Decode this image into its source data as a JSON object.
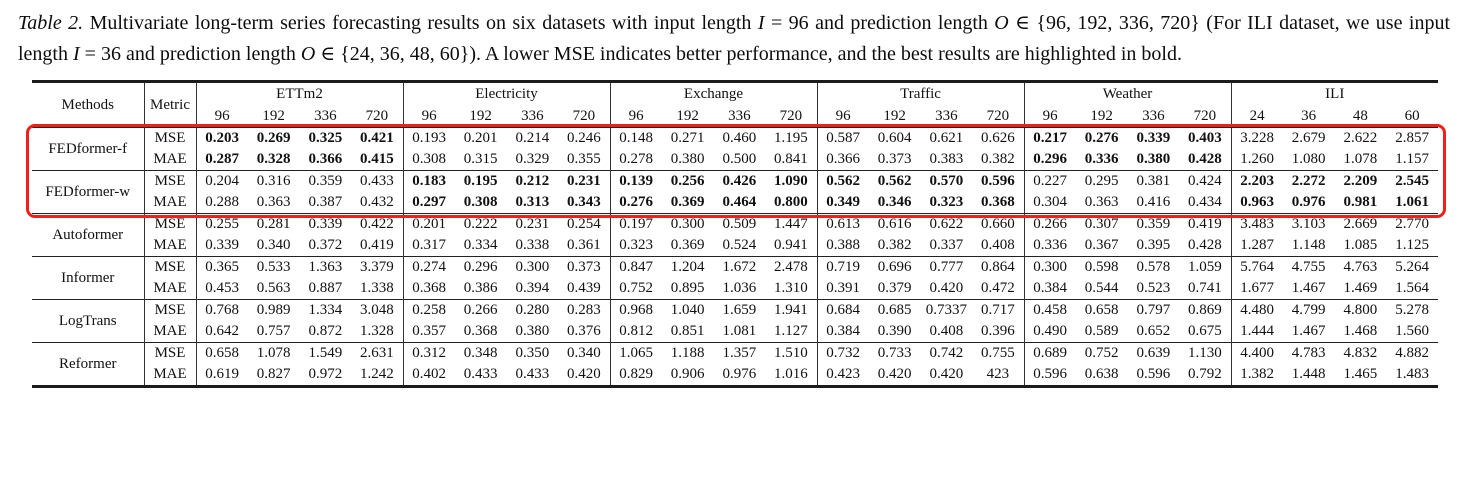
{
  "caption": {
    "segments": [
      {
        "name": "caption-label",
        "text": "Table 2. ",
        "italic": true
      },
      {
        "name": "caption-text",
        "text": "Multivariate long-term series forecasting results on six datasets with input length ",
        "italic": false
      },
      {
        "name": "caption-math",
        "text": "I",
        "italic": true
      },
      {
        "name": "caption-text",
        "text": " = 96 and prediction length ",
        "italic": false
      },
      {
        "name": "caption-math",
        "text": "O",
        "italic": true
      },
      {
        "name": "caption-text",
        "text": " ∈ {96, 192, 336, 720} (For ILI dataset, we use input length ",
        "italic": false
      },
      {
        "name": "caption-math",
        "text": "I",
        "italic": true
      },
      {
        "name": "caption-text",
        "text": " = 36 and prediction length ",
        "italic": false
      },
      {
        "name": "caption-math",
        "text": "O",
        "italic": true
      },
      {
        "name": "caption-text",
        "text": " ∈ {24, 36, 48, 60}).  A lower MSE indicates better performance, and the best results are highlighted in bold.",
        "italic": false
      }
    ]
  },
  "colors": {
    "highlight_box": "#ee2019",
    "rule": "#1c1c1c",
    "text": "#111111"
  },
  "table": {
    "methods_header": "Methods",
    "metric_header": "Metric",
    "datasets": [
      {
        "name": "ETTm2",
        "horizons": [
          "96",
          "192",
          "336",
          "720"
        ]
      },
      {
        "name": "Electricity",
        "horizons": [
          "96",
          "192",
          "336",
          "720"
        ]
      },
      {
        "name": "Exchange",
        "horizons": [
          "96",
          "192",
          "336",
          "720"
        ]
      },
      {
        "name": "Traffic",
        "horizons": [
          "96",
          "192",
          "336",
          "720"
        ]
      },
      {
        "name": "Weather",
        "horizons": [
          "96",
          "192",
          "336",
          "720"
        ]
      },
      {
        "name": "ILI",
        "horizons": [
          "24",
          "36",
          "48",
          "60"
        ]
      }
    ],
    "methods": [
      {
        "name": "FEDformer-f",
        "highlighted": true,
        "rows": [
          {
            "metric": "MSE",
            "values": [
              "0.203",
              "0.269",
              "0.325",
              "0.421",
              "0.193",
              "0.201",
              "0.214",
              "0.246",
              "0.148",
              "0.271",
              "0.460",
              "1.195",
              "0.587",
              "0.604",
              "0.621",
              "0.626",
              "0.217",
              "0.276",
              "0.339",
              "0.403",
              "3.228",
              "2.679",
              "2.622",
              "2.857"
            ],
            "bold": [
              0,
              1,
              2,
              3,
              16,
              17,
              18,
              19
            ]
          },
          {
            "metric": "MAE",
            "values": [
              "0.287",
              "0.328",
              "0.366",
              "0.415",
              "0.308",
              "0.315",
              "0.329",
              "0.355",
              "0.278",
              "0.380",
              "0.500",
              "0.841",
              "0.366",
              "0.373",
              "0.383",
              "0.382",
              "0.296",
              "0.336",
              "0.380",
              "0.428",
              "1.260",
              "1.080",
              "1.078",
              "1.157"
            ],
            "bold": [
              0,
              1,
              2,
              3,
              16,
              17,
              18,
              19
            ]
          }
        ]
      },
      {
        "name": "FEDformer-w",
        "highlighted": true,
        "rows": [
          {
            "metric": "MSE",
            "values": [
              "0.204",
              "0.316",
              "0.359",
              "0.433",
              "0.183",
              "0.195",
              "0.212",
              "0.231",
              "0.139",
              "0.256",
              "0.426",
              "1.090",
              "0.562",
              "0.562",
              "0.570",
              "0.596",
              "0.227",
              "0.295",
              "0.381",
              "0.424",
              "2.203",
              "2.272",
              "2.209",
              "2.545"
            ],
            "bold": [
              4,
              5,
              6,
              7,
              8,
              9,
              10,
              11,
              12,
              13,
              14,
              15,
              20,
              21,
              22,
              23
            ]
          },
          {
            "metric": "MAE",
            "values": [
              "0.288",
              "0.363",
              "0.387",
              "0.432",
              "0.297",
              "0.308",
              "0.313",
              "0.343",
              "0.276",
              "0.369",
              "0.464",
              "0.800",
              "0.349",
              "0.346",
              "0.323",
              "0.368",
              "0.304",
              "0.363",
              "0.416",
              "0.434",
              "0.963",
              "0.976",
              "0.981",
              "1.061"
            ],
            "bold": [
              4,
              5,
              6,
              7,
              8,
              9,
              10,
              11,
              12,
              13,
              14,
              15,
              20,
              21,
              22,
              23
            ]
          }
        ]
      },
      {
        "name": "Autoformer",
        "highlighted": false,
        "rows": [
          {
            "metric": "MSE",
            "values": [
              "0.255",
              "0.281",
              "0.339",
              "0.422",
              "0.201",
              "0.222",
              "0.231",
              "0.254",
              "0.197",
              "0.300",
              "0.509",
              "1.447",
              "0.613",
              "0.616",
              "0.622",
              "0.660",
              "0.266",
              "0.307",
              "0.359",
              "0.419",
              "3.483",
              "3.103",
              "2.669",
              "2.770"
            ],
            "bold": []
          },
          {
            "metric": "MAE",
            "values": [
              "0.339",
              "0.340",
              "0.372",
              "0.419",
              "0.317",
              "0.334",
              "0.338",
              "0.361",
              "0.323",
              "0.369",
              "0.524",
              "0.941",
              "0.388",
              "0.382",
              "0.337",
              "0.408",
              "0.336",
              "0.367",
              "0.395",
              "0.428",
              "1.287",
              "1.148",
              "1.085",
              "1.125"
            ],
            "bold": []
          }
        ]
      },
      {
        "name": "Informer",
        "highlighted": false,
        "rows": [
          {
            "metric": "MSE",
            "values": [
              "0.365",
              "0.533",
              "1.363",
              "3.379",
              "0.274",
              "0.296",
              "0.300",
              "0.373",
              "0.847",
              "1.204",
              "1.672",
              "2.478",
              "0.719",
              "0.696",
              "0.777",
              "0.864",
              "0.300",
              "0.598",
              "0.578",
              "1.059",
              "5.764",
              "4.755",
              "4.763",
              "5.264"
            ],
            "bold": []
          },
          {
            "metric": "MAE",
            "values": [
              "0.453",
              "0.563",
              "0.887",
              "1.338",
              "0.368",
              "0.386",
              "0.394",
              "0.439",
              "0.752",
              "0.895",
              "1.036",
              "1.310",
              "0.391",
              "0.379",
              "0.420",
              "0.472",
              "0.384",
              "0.544",
              "0.523",
              "0.741",
              "1.677",
              "1.467",
              "1.469",
              "1.564"
            ],
            "bold": []
          }
        ]
      },
      {
        "name": "LogTrans",
        "highlighted": false,
        "rows": [
          {
            "metric": "MSE",
            "values": [
              "0.768",
              "0.989",
              "1.334",
              "3.048",
              "0.258",
              "0.266",
              "0.280",
              "0.283",
              "0.968",
              "1.040",
              "1.659",
              "1.941",
              "0.684",
              "0.685",
              "0.7337",
              "0.717",
              "0.458",
              "0.658",
              "0.797",
              "0.869",
              "4.480",
              "4.799",
              "4.800",
              "5.278"
            ],
            "bold": []
          },
          {
            "metric": "MAE",
            "values": [
              "0.642",
              "0.757",
              "0.872",
              "1.328",
              "0.357",
              "0.368",
              "0.380",
              "0.376",
              "0.812",
              "0.851",
              "1.081",
              "1.127",
              "0.384",
              "0.390",
              "0.408",
              "0.396",
              "0.490",
              "0.589",
              "0.652",
              "0.675",
              "1.444",
              "1.467",
              "1.468",
              "1.560"
            ],
            "bold": []
          }
        ]
      },
      {
        "name": "Reformer",
        "highlighted": false,
        "rows": [
          {
            "metric": "MSE",
            "values": [
              "0.658",
              "1.078",
              "1.549",
              "2.631",
              "0.312",
              "0.348",
              "0.350",
              "0.340",
              "1.065",
              "1.188",
              "1.357",
              "1.510",
              "0.732",
              "0.733",
              "0.742",
              "0.755",
              "0.689",
              "0.752",
              "0.639",
              "1.130",
              "4.400",
              "4.783",
              "4.832",
              "4.882"
            ],
            "bold": []
          },
          {
            "metric": "MAE",
            "values": [
              "0.619",
              "0.827",
              "0.972",
              "1.242",
              "0.402",
              "0.433",
              "0.433",
              "0.420",
              "0.829",
              "0.906",
              "0.976",
              "1.016",
              "0.423",
              "0.420",
              "0.420",
              "423",
              "0.596",
              "0.638",
              "0.596",
              "0.792",
              "1.382",
              "1.448",
              "1.465",
              "1.483"
            ],
            "bold": []
          }
        ]
      }
    ]
  }
}
